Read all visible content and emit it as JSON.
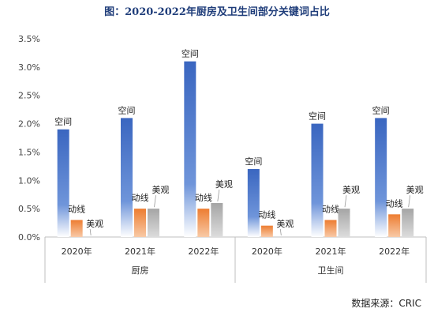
{
  "chart_data": {
    "type": "bar",
    "title": "图：2020-2022年厨房及卫生间部分关键词占比",
    "source": "数据来源：CRIC",
    "ylim": [
      0,
      3.5
    ],
    "yticks": [
      "0.0%",
      "0.5%",
      "1.0%",
      "1.5%",
      "2.0%",
      "2.5%",
      "3.0%",
      "3.5%"
    ],
    "groups": [
      {
        "name": "厨房",
        "categories": [
          "2020年",
          "2021年",
          "2022年"
        ],
        "series": [
          {
            "name": "空间",
            "values": [
              1.9,
              2.1,
              3.1
            ]
          },
          {
            "name": "动线",
            "values": [
              0.3,
              0.5,
              0.5
            ]
          },
          {
            "name": "美观",
            "values": [
              0.0,
              0.5,
              0.6
            ]
          }
        ]
      },
      {
        "name": "卫生间",
        "categories": [
          "2020年",
          "2021年",
          "2022年"
        ],
        "series": [
          {
            "name": "空间",
            "values": [
              1.2,
              2.0,
              2.1
            ]
          },
          {
            "name": "动线",
            "values": [
              0.2,
              0.3,
              0.4
            ]
          },
          {
            "name": "美观",
            "values": [
              0.0,
              0.5,
              0.5
            ]
          }
        ]
      }
    ],
    "colors": {
      "空间": "#4472c4",
      "动线": "#ed7d31",
      "美观": "#a5a5a5"
    }
  }
}
